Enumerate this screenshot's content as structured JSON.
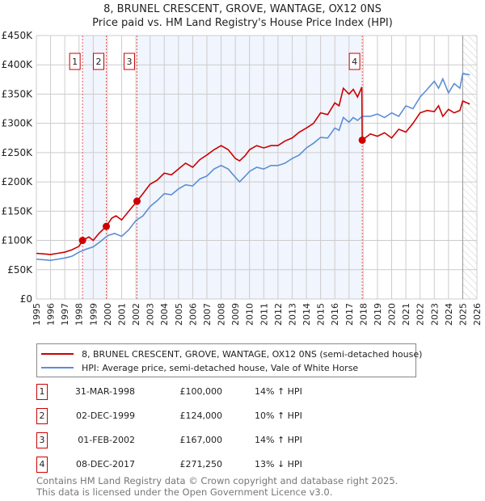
{
  "title": "8, BRUNEL CRESCENT, GROVE, WANTAGE, OX12 0NS",
  "subtitle": "Price paid vs. HM Land Registry's House Price Index (HPI)",
  "chart_data": {
    "type": "line",
    "xlim": [
      1995,
      2026
    ],
    "ylim": [
      0,
      450000
    ],
    "x_ticks": [
      "1995",
      "1996",
      "1997",
      "1998",
      "1999",
      "2000",
      "2001",
      "2002",
      "2003",
      "2004",
      "2005",
      "2006",
      "2007",
      "2008",
      "2009",
      "2010",
      "2011",
      "2012",
      "2013",
      "2014",
      "2015",
      "2016",
      "2017",
      "2018",
      "2019",
      "2020",
      "2021",
      "2022",
      "2023",
      "2024",
      "2025",
      "2026"
    ],
    "y_ticks": [
      {
        "v": 0,
        "label": "£0"
      },
      {
        "v": 50000,
        "label": "£50K"
      },
      {
        "v": 100000,
        "label": "£100K"
      },
      {
        "v": 150000,
        "label": "£150K"
      },
      {
        "v": 200000,
        "label": "£200K"
      },
      {
        "v": 250000,
        "label": "£250K"
      },
      {
        "v": 300000,
        "label": "£300K"
      },
      {
        "v": 350000,
        "label": "£350K"
      },
      {
        "v": 400000,
        "label": "£400K"
      },
      {
        "v": 450000,
        "label": "£450K"
      }
    ],
    "series": [
      {
        "name": "8, BRUNEL CRESCENT, GROVE, WANTAGE, OX12 0NS (semi-detached house)",
        "color": "#cc0000",
        "x": [
          1995,
          1995.5,
          1996,
          1996.5,
          1997,
          1997.5,
          1998,
          1998.25,
          1998.7,
          1999,
          1999.4,
          1999.92,
          2000.3,
          2000.6,
          2001,
          2001.5,
          2002.08,
          2002.5,
          2003,
          2003.5,
          2004,
          2004.5,
          2005,
          2005.5,
          2006,
          2006.5,
          2007,
          2007.5,
          2008,
          2008.5,
          2009,
          2009.3,
          2009.7,
          2010,
          2010.5,
          2011,
          2011.5,
          2012,
          2012.5,
          2013,
          2013.5,
          2014,
          2014.5,
          2015,
          2015.5,
          2016,
          2016.3,
          2016.6,
          2017,
          2017.3,
          2017.6,
          2017.9,
          2017.93,
          2018.5,
          2019,
          2019.5,
          2020,
          2020.5,
          2021,
          2021.5,
          2022,
          2022.5,
          2023,
          2023.3,
          2023.6,
          2024,
          2024.4,
          2024.8,
          2025,
          2025.5
        ],
        "y": [
          78,
          77,
          76,
          78,
          80,
          84,
          90,
          100,
          106,
          100,
          112,
          124,
          138,
          142,
          135,
          150,
          167,
          180,
          196,
          203,
          215,
          212,
          222,
          232,
          225,
          238,
          246,
          255,
          262,
          255,
          240,
          236,
          245,
          255,
          262,
          258,
          262,
          262,
          270,
          275,
          285,
          292,
          300,
          318,
          315,
          335,
          330,
          360,
          350,
          358,
          345,
          362,
          271.25,
          282,
          278,
          284,
          275,
          290,
          285,
          300,
          318,
          322,
          320,
          330,
          312,
          324,
          318,
          322,
          338,
          333
        ]
      },
      {
        "name": "HPI: Average price, semi-detached house, Vale of White Horse",
        "color": "#5b8ed6",
        "x": [
          1995,
          1995.5,
          1996,
          1996.5,
          1997,
          1997.5,
          1998,
          1998.5,
          1999,
          1999.5,
          2000,
          2000.5,
          2001,
          2001.5,
          2002,
          2002.5,
          2003,
          2003.5,
          2004,
          2004.5,
          2005,
          2005.5,
          2006,
          2006.5,
          2007,
          2007.5,
          2008,
          2008.5,
          2009,
          2009.3,
          2009.7,
          2010,
          2010.5,
          2011,
          2011.5,
          2012,
          2012.5,
          2013,
          2013.5,
          2014,
          2014.5,
          2015,
          2015.5,
          2016,
          2016.3,
          2016.6,
          2017,
          2017.3,
          2017.6,
          2017.93,
          2018.5,
          2019,
          2019.5,
          2020,
          2020.5,
          2021,
          2021.5,
          2022,
          2022.5,
          2023,
          2023.3,
          2023.6,
          2024,
          2024.4,
          2024.8,
          2025,
          2025.5
        ],
        "y": [
          68,
          67,
          66,
          68,
          70,
          73,
          80,
          85,
          89,
          98,
          108,
          112,
          107,
          118,
          134,
          142,
          158,
          168,
          180,
          178,
          188,
          195,
          193,
          205,
          210,
          222,
          228,
          222,
          208,
          200,
          210,
          218,
          225,
          222,
          228,
          228,
          232,
          240,
          246,
          258,
          266,
          276,
          275,
          292,
          288,
          310,
          302,
          310,
          305,
          312,
          312,
          316,
          310,
          318,
          312,
          330,
          325,
          345,
          358,
          372,
          360,
          376,
          352,
          368,
          360,
          385,
          383
        ]
      }
    ],
    "sales": [
      {
        "num": "1",
        "x": 1998.25,
        "y": 100000
      },
      {
        "num": "2",
        "x": 1999.92,
        "y": 124000
      },
      {
        "num": "3",
        "x": 2002.08,
        "y": 167000
      },
      {
        "num": "4",
        "x": 2017.93,
        "y": 271250
      }
    ],
    "shaded_ranges": [
      [
        1998.25,
        1999.92
      ],
      [
        2002.08,
        2017.93
      ]
    ],
    "hatched_from": 2025.0
  },
  "legend": [
    "8, BRUNEL CRESCENT, GROVE, WANTAGE, OX12 0NS (semi-detached house)",
    "HPI: Average price, semi-detached house, Vale of White Horse"
  ],
  "sales_table": [
    {
      "num": "1",
      "date": "31-MAR-1998",
      "price": "£100,000",
      "hpi": "14% ↑ HPI"
    },
    {
      "num": "2",
      "date": "02-DEC-1999",
      "price": "£124,000",
      "hpi": "10% ↑ HPI"
    },
    {
      "num": "3",
      "date": "01-FEB-2002",
      "price": "£167,000",
      "hpi": "14% ↑ HPI"
    },
    {
      "num": "4",
      "date": "08-DEC-2017",
      "price": "£271,250",
      "hpi": "13% ↓ HPI"
    }
  ],
  "footer": [
    "Contains HM Land Registry data © Crown copyright and database right 2025.",
    "This data is licensed under the Open Government Licence v3.0."
  ]
}
